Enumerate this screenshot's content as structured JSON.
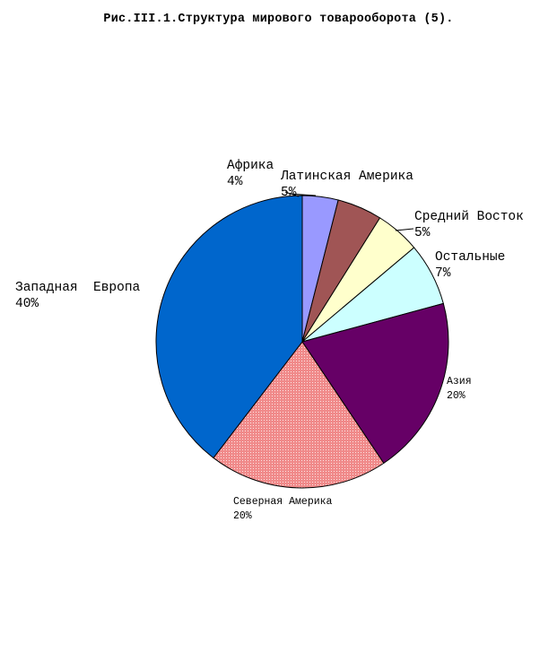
{
  "title": "Рис.III.1.Структура мирового товарооборота (5).",
  "chart_data": {
    "type": "pie",
    "title": "Рис.III.1.Структура мирового товарооборота (5).",
    "legend": "none",
    "slices": [
      {
        "label": "Африка",
        "pct_label": "4%",
        "value": 4,
        "color": "#9999ff"
      },
      {
        "label": "Латинская Америка",
        "pct_label": "5%",
        "value": 5,
        "color": "#a05555"
      },
      {
        "label": "Средний Восток",
        "pct_label": "5%",
        "value": 5,
        "color": "#ffffcc"
      },
      {
        "label": "Остальные",
        "pct_label": "7%",
        "value": 7,
        "color": "#ccffff"
      },
      {
        "label": "Азия",
        "pct_label": "20%",
        "value": 20,
        "color": "#660066"
      },
      {
        "label": "Северная Америка",
        "pct_label": "20%",
        "value": 20,
        "color": "#f08a8a"
      },
      {
        "label": "Западная  Европа",
        "pct_label": "40%",
        "value": 40,
        "color": "#0066cc"
      }
    ]
  }
}
